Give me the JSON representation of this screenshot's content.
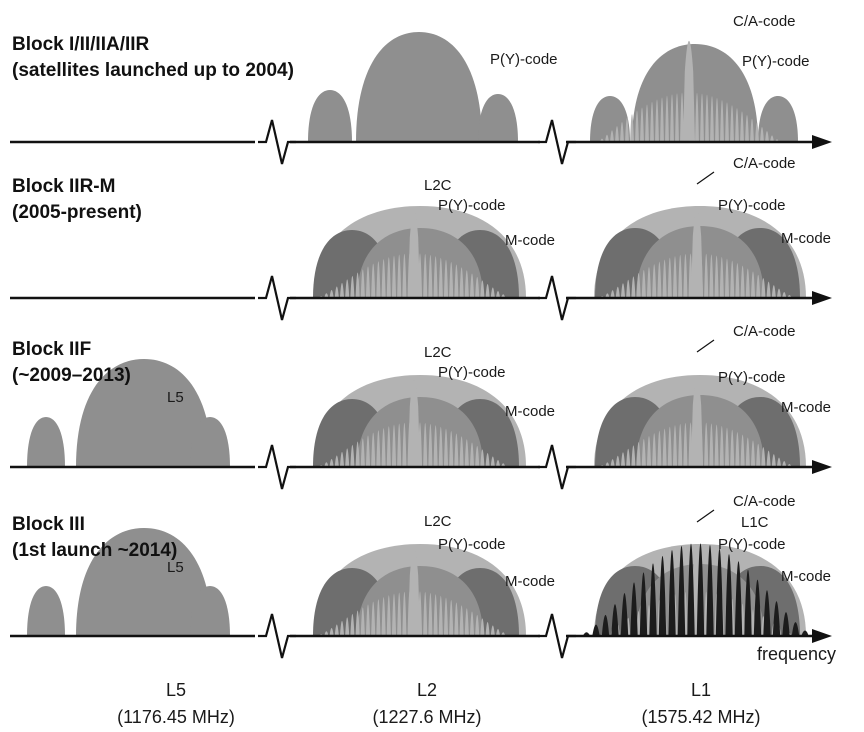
{
  "colors": {
    "light": "#b3b3b3",
    "mid": "#8f8f8f",
    "dark": "#6e6e6e",
    "black": "#1c1c1c",
    "line": "#111111"
  },
  "blocks": [
    {
      "title1": "Block I/II/IIA/IIR",
      "title2": "(satellites launched up to 2004)",
      "labels": {
        "py_l2": "P(Y)-code",
        "ca": "C/A-code",
        "py_l1": "P(Y)-code"
      }
    },
    {
      "title1": "Block IIR-M",
      "title2": "(2005-present)",
      "labels": {
        "l2c": "L2C",
        "py_l2": "P(Y)-code",
        "m_l2": "M-code",
        "ca": "C/A-code",
        "py_l1": "P(Y)-code",
        "m_l1": "M-code"
      }
    },
    {
      "title1": "Block IIF",
      "title2": "(~2009–2013)",
      "labels": {
        "l5": "L5",
        "l2c": "L2C",
        "py_l2": "P(Y)-code",
        "m_l2": "M-code",
        "ca": "C/A-code",
        "py_l1": "P(Y)-code",
        "m_l1": "M-code"
      }
    },
    {
      "title1": "Block III",
      "title2": "(1st launch ~2014)",
      "labels": {
        "l5": "L5",
        "l2c": "L2C",
        "py_l2": "P(Y)-code",
        "m_l2": "M-code",
        "ca": "C/A-code",
        "l1c": "L1C",
        "py_l1": "P(Y)-code",
        "m_l1": "M-code"
      }
    }
  ],
  "axis": {
    "label": "frequency"
  },
  "bands": [
    {
      "name": "L5",
      "freq": "(1176.45 MHz)"
    },
    {
      "name": "L2",
      "freq": "(1227.6 MHz)"
    },
    {
      "name": "L1",
      "freq": "(1575.42 MHz)"
    }
  ]
}
